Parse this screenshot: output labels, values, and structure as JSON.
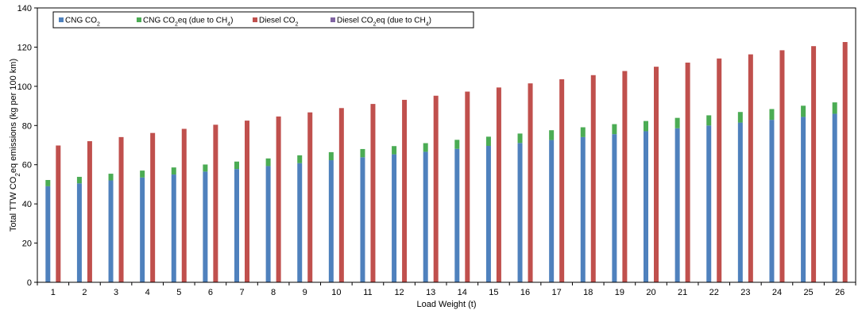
{
  "chart_data": {
    "type": "bar",
    "stacked": true,
    "categories": [
      "1",
      "2",
      "3",
      "4",
      "5",
      "6",
      "7",
      "8",
      "9",
      "10",
      "11",
      "12",
      "13",
      "14",
      "15",
      "16",
      "17",
      "18",
      "19",
      "20",
      "21",
      "22",
      "23",
      "24",
      "25",
      "26"
    ],
    "xlabel": "Load Weight (t)",
    "ylabel": {
      "prefix": "Total TTW CO",
      "sub": "2",
      "suffix": "eq emissions (kg per 100 km)"
    },
    "ylim": [
      0,
      140
    ],
    "yticks": [
      0,
      20,
      40,
      60,
      80,
      100,
      120,
      140
    ],
    "legend_position": "top-left",
    "series": [
      {
        "name": "CNG CO₂",
        "legend": {
          "prefix": "CNG CO",
          "sub": "2",
          "suffix": ""
        },
        "group": "CNG",
        "color": "#4F81BD",
        "values": [
          49,
          50.5,
          52,
          53.5,
          55,
          56.5,
          57.8,
          59.3,
          60.8,
          62.3,
          63.8,
          65.3,
          66.6,
          68.1,
          69.6,
          71.1,
          72.6,
          74.1,
          75.6,
          77.1,
          78.6,
          80,
          81.5,
          82.9,
          84.4,
          86
        ]
      },
      {
        "name": "CNG CO₂eq (due to CH₄)",
        "legend": {
          "prefix": "CNG CO",
          "sub": "2",
          "suffix": "eq (due to CH",
          "sub2": "4",
          "suffix2": ")"
        },
        "group": "CNG",
        "color": "#4BAC54",
        "values": [
          3.2,
          3.3,
          3.4,
          3.5,
          3.6,
          3.6,
          3.8,
          3.9,
          4,
          4.1,
          4.2,
          4.2,
          4.4,
          4.6,
          4.7,
          4.8,
          5,
          5,
          5.1,
          5.2,
          5.3,
          5.2,
          5.4,
          5.5,
          5.7,
          5.8
        ]
      },
      {
        "name": "Diesel CO₂",
        "legend": {
          "prefix": "Diesel CO",
          "sub": "2",
          "suffix": ""
        },
        "group": "Diesel",
        "color": "#C0504D",
        "values": [
          69.8,
          72,
          74.1,
          76.2,
          78.3,
          80.4,
          82.5,
          84.6,
          86.7,
          88.9,
          91,
          93.1,
          95.2,
          97.3,
          99.4,
          101.5,
          103.6,
          105.7,
          107.8,
          110,
          112.1,
          114.2,
          116.3,
          118.4,
          120.5,
          122.6
        ]
      },
      {
        "name": "Diesel CO₂eq (due to CH₄)",
        "legend": {
          "prefix": "Diesel CO",
          "sub": "2",
          "suffix": "eq (due to CH",
          "sub2": "4",
          "suffix2": ")"
        },
        "group": "Diesel",
        "color": "#8064A2",
        "values": [
          0,
          0,
          0,
          0,
          0,
          0,
          0,
          0,
          0,
          0,
          0,
          0,
          0,
          0,
          0,
          0,
          0,
          0,
          0,
          0,
          0,
          0,
          0,
          0,
          0,
          0
        ]
      }
    ]
  }
}
